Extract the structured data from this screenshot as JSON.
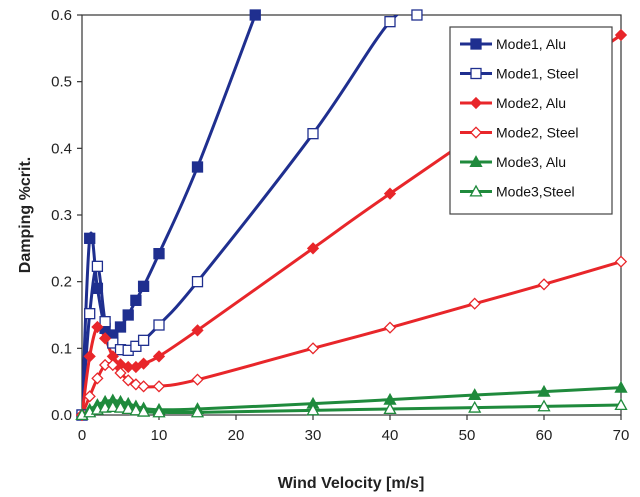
{
  "chart_data": {
    "type": "line",
    "title": "",
    "xlabel": "Wind Velocity [m/s]",
    "ylabel": "Damping %crit.",
    "xlim": [
      0,
      70
    ],
    "ylim": [
      0,
      0.6
    ],
    "xticks": [
      0,
      10,
      20,
      30,
      40,
      50,
      60,
      70
    ],
    "yticks": [
      0.0,
      0.1,
      0.2,
      0.3,
      0.4,
      0.5,
      0.6
    ],
    "ytick_labels": [
      "0.0",
      "0.1",
      "0.2",
      "0.3",
      "0.4",
      "0.5",
      "0.6"
    ],
    "grid": false,
    "legend_position": "top-right",
    "series": [
      {
        "name": "Mode1, Alu",
        "color": "#1f2f8f",
        "marker": "square",
        "filled": true,
        "x": [
          0,
          1,
          2,
          3,
          4,
          5,
          6,
          7,
          8,
          10,
          15,
          22.5
        ],
        "y": [
          0.0,
          0.265,
          0.19,
          0.13,
          0.12,
          0.132,
          0.15,
          0.172,
          0.193,
          0.242,
          0.372,
          0.6
        ]
      },
      {
        "name": "Mode1, Steel",
        "color": "#1f2f8f",
        "marker": "square",
        "filled": false,
        "x": [
          0,
          1,
          2,
          3,
          4,
          5,
          6,
          7,
          8,
          10,
          15,
          30,
          40,
          43.5
        ],
        "y": [
          0.0,
          0.152,
          0.223,
          0.14,
          0.108,
          0.098,
          0.097,
          0.103,
          0.112,
          0.135,
          0.2,
          0.422,
          0.59,
          0.6
        ]
      },
      {
        "name": "Mode2, Alu",
        "color": "#e8262a",
        "marker": "diamond",
        "filled": true,
        "x": [
          0,
          1,
          2,
          3,
          4,
          5,
          6,
          7,
          8,
          10,
          15,
          30,
          40,
          70
        ],
        "y": [
          0.0,
          0.088,
          0.132,
          0.115,
          0.088,
          0.076,
          0.072,
          0.072,
          0.077,
          0.088,
          0.127,
          0.25,
          0.332,
          0.57
        ]
      },
      {
        "name": "Mode2, Steel",
        "color": "#e8262a",
        "marker": "diamond",
        "filled": false,
        "x": [
          0,
          1,
          2,
          3,
          4,
          5,
          6,
          7,
          8,
          10,
          15,
          30,
          40,
          51,
          60,
          70
        ],
        "y": [
          0.0,
          0.028,
          0.055,
          0.075,
          0.075,
          0.063,
          0.052,
          0.046,
          0.043,
          0.043,
          0.053,
          0.1,
          0.131,
          0.167,
          0.196,
          0.23
        ]
      },
      {
        "name": "Mode3, Alu",
        "color": "#1f8a3c",
        "marker": "triangle",
        "filled": true,
        "x": [
          0,
          1,
          2,
          3,
          4,
          5,
          6,
          7,
          8,
          10,
          15,
          30,
          40,
          51,
          60,
          70
        ],
        "y": [
          0.0,
          0.008,
          0.015,
          0.02,
          0.022,
          0.02,
          0.017,
          0.013,
          0.01,
          0.008,
          0.009,
          0.017,
          0.023,
          0.03,
          0.035,
          0.041
        ]
      },
      {
        "name": "Mode3,Steel",
        "color": "#1f8a3c",
        "marker": "triangle",
        "filled": false,
        "x": [
          0,
          1,
          2,
          3,
          4,
          5,
          6,
          7,
          8,
          10,
          15,
          30,
          40,
          51,
          60,
          70
        ],
        "y": [
          0.0,
          0.004,
          0.008,
          0.011,
          0.012,
          0.011,
          0.009,
          0.007,
          0.005,
          0.004,
          0.004,
          0.007,
          0.009,
          0.011,
          0.013,
          0.015
        ]
      }
    ]
  }
}
